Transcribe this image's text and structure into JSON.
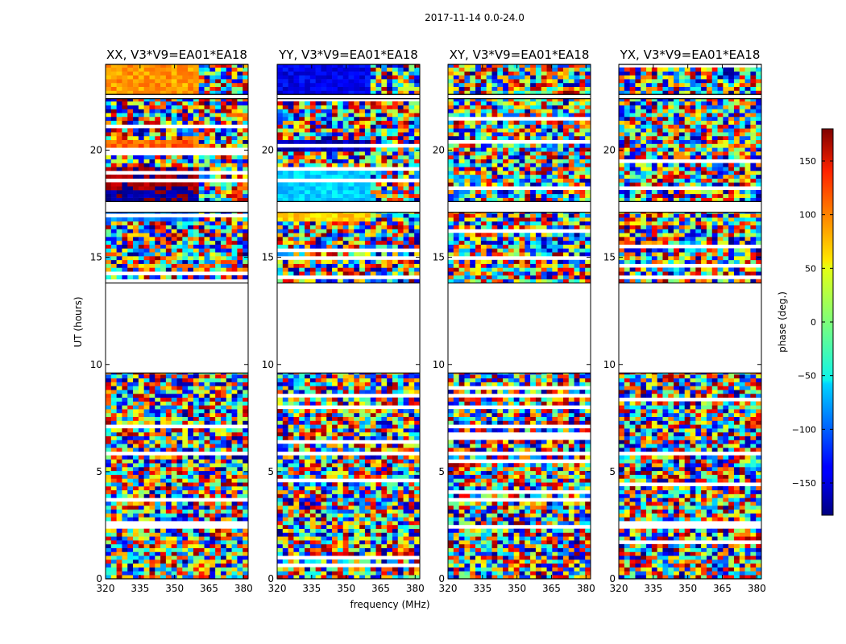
{
  "chart_data": {
    "type": "heatmap",
    "suptitle": "2017-11-14 0.0-24.0",
    "xlabel": "frequency (MHz)",
    "ylabel": "UT (hours)",
    "xlim": [
      320,
      382
    ],
    "ylim": [
      0,
      24
    ],
    "xticks": [
      320,
      335,
      350,
      365,
      380
    ],
    "yticks": [
      0,
      5,
      10,
      15,
      20
    ],
    "panels": [
      {
        "title": "XX, V3*V9=EA01*EA18"
      },
      {
        "title": "YY, V3*V9=EA01*EA18"
      },
      {
        "title": "XY, V3*V9=EA01*EA18"
      },
      {
        "title": "YX, V3*V9=EA01*EA18"
      }
    ],
    "colorbar": {
      "label": "phase (deg.)",
      "range": [
        -180,
        180
      ],
      "ticks": [
        150,
        100,
        50,
        0,
        -50,
        -100,
        -150
      ],
      "tick_labels": [
        "150",
        "100",
        "50",
        "0",
        "−50",
        "−100",
        "−150"
      ],
      "colormap": "jet"
    },
    "data_segments_ut": [
      [
        0.0,
        9.6
      ],
      [
        13.8,
        17.1
      ],
      [
        17.6,
        22.4
      ],
      [
        22.6,
        24.0
      ]
    ],
    "empty_gap_ut": [
      9.6,
      13.8
    ]
  }
}
